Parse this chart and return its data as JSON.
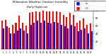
{
  "title": "Milwaukee Weather Outdoor Humidity",
  "subtitle": "Daily High/Low",
  "high_values": [
    72,
    75,
    55,
    62,
    68,
    85,
    68,
    60,
    93,
    95,
    97,
    95,
    98,
    97,
    96,
    97,
    96,
    94,
    88,
    82,
    93,
    88,
    68,
    72,
    78,
    62,
    65
  ],
  "low_values": [
    52,
    58,
    40,
    40,
    48,
    52,
    48,
    40,
    62,
    68,
    72,
    68,
    72,
    68,
    65,
    70,
    68,
    62,
    58,
    52,
    62,
    58,
    45,
    50,
    52,
    40,
    45
  ],
  "high_color": "#ff0000",
  "low_color": "#0000ff",
  "background_color": "#ffffff",
  "ylim": [
    0,
    100
  ],
  "yticks": [
    20,
    40,
    60,
    80,
    100
  ],
  "n_bars": 27
}
